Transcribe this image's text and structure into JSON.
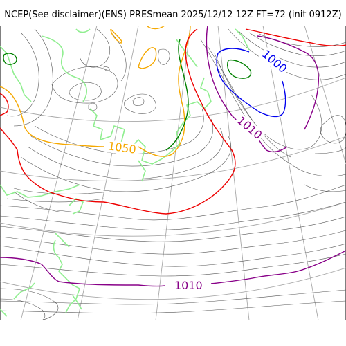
{
  "title": "NCEP(See disclaimer)(ENS) PRESmean 2025/12/12 12Z FT=72 (init 0912Z)",
  "colors": {
    "contour_thin": "#555555",
    "graticule": "#a8a8a8",
    "coastline": "#90ee90",
    "c1050": "#f5a800",
    "c1010": "#880088",
    "c1000": "#0000ee",
    "red": "#ee0000",
    "green": "#008000"
  },
  "isobar_labels": [
    {
      "text": "1050",
      "color": "#f5a800"
    },
    {
      "text": "1000",
      "color": "#0000ee"
    },
    {
      "text": "1010",
      "color": "#880088"
    },
    {
      "text": "1010",
      "color": "#880088"
    }
  ]
}
